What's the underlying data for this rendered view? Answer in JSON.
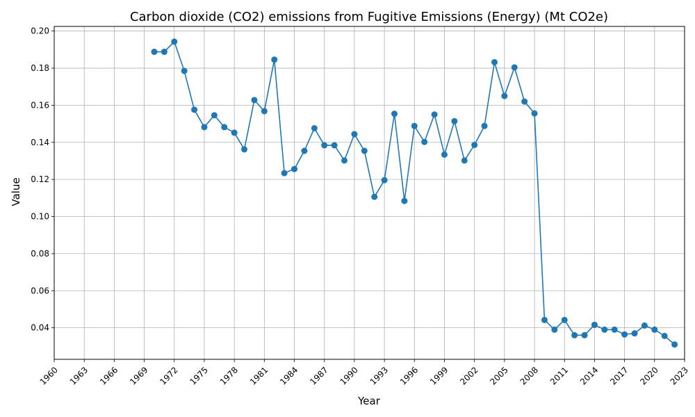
{
  "chart_data": {
    "type": "line",
    "title": "Carbon dioxide (CO2) emissions from Fugitive Emissions (Energy) (Mt CO2e)",
    "xlabel": "Year",
    "ylabel": "Value",
    "xlim": [
      1960,
      2023
    ],
    "ylim": [
      0.023,
      0.2025
    ],
    "xticks": [
      1960,
      1963,
      1966,
      1969,
      1972,
      1975,
      1978,
      1981,
      1984,
      1987,
      1990,
      1993,
      1996,
      1999,
      2002,
      2005,
      2008,
      2011,
      2014,
      2017,
      2020,
      2023
    ],
    "yticks": [
      0.04,
      0.06,
      0.08,
      0.1,
      0.12,
      0.14,
      0.16,
      0.18,
      0.2
    ],
    "ytick_labels": [
      "0.04",
      "0.06",
      "0.08",
      "0.10",
      "0.12",
      "0.14",
      "0.16",
      "0.18",
      "0.20"
    ],
    "grid": true,
    "color": "#1f77b4",
    "marker": "circle",
    "series": [
      {
        "x": [
          1970,
          1971,
          1972,
          1973,
          1974,
          1975,
          1976,
          1977,
          1978,
          1979,
          1980,
          1981,
          1982,
          1983,
          1984,
          1985,
          1986,
          1987,
          1988,
          1989,
          1990,
          1991,
          1992,
          1993,
          1994,
          1995,
          1996,
          1997,
          1998,
          1999,
          2000,
          2001,
          2002,
          2003,
          2004,
          2005,
          2006,
          2007,
          2008,
          2009,
          2010,
          2011,
          2012,
          2013,
          2014,
          2015,
          2016,
          2017,
          2018,
          2019,
          2020,
          2021,
          2022
        ],
        "values": [
          0.1888,
          0.1888,
          0.1943,
          0.1785,
          0.1576,
          0.1482,
          0.1546,
          0.1482,
          0.1452,
          0.1362,
          0.1628,
          0.1568,
          0.1846,
          0.1234,
          0.1256,
          0.1354,
          0.1476,
          0.1384,
          0.1384,
          0.1302,
          0.1444,
          0.1354,
          0.1106,
          0.1196,
          0.1554,
          0.1084,
          0.1488,
          0.1402,
          0.155,
          0.1334,
          0.1514,
          0.1302,
          0.1386,
          0.1488,
          0.1832,
          0.165,
          0.1804,
          0.162,
          0.1556,
          0.0442,
          0.039,
          0.0442,
          0.036,
          0.036,
          0.0416,
          0.039,
          0.039,
          0.0364,
          0.037,
          0.0412,
          0.039,
          0.0356,
          0.031
        ]
      }
    ]
  }
}
